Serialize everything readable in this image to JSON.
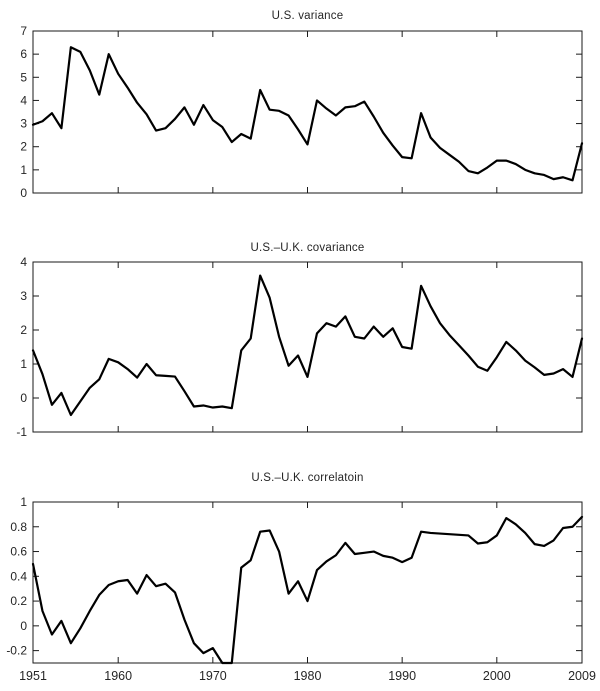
{
  "figure": {
    "background": "#ffffff",
    "line_color": "#000000",
    "axis_color": "#1a1a1a",
    "text_color": "#262626"
  },
  "x_axis": {
    "start_year": 1951,
    "end_year": 2009,
    "tick_years": [
      1951,
      1960,
      1970,
      1980,
      1990,
      2000,
      2009
    ],
    "tick_labels": [
      "1951",
      "1960",
      "1970",
      "1980",
      "1990",
      "2000",
      "2009"
    ]
  },
  "chart_data": [
    {
      "type": "line",
      "title": "U.S. variance",
      "x_start": 1951,
      "x_end": 2009,
      "x_step": 1,
      "ylim": [
        0,
        7
      ],
      "yticks": [
        0,
        1,
        2,
        3,
        4,
        5,
        6,
        7
      ],
      "grid": false,
      "legend": "none",
      "values": [
        2.95,
        3.1,
        3.45,
        2.8,
        6.3,
        6.1,
        5.3,
        4.25,
        6.0,
        5.15,
        4.55,
        3.9,
        3.4,
        2.7,
        2.8,
        3.2,
        3.7,
        2.95,
        3.8,
        3.15,
        2.85,
        2.2,
        2.55,
        2.35,
        4.45,
        3.6,
        3.55,
        3.35,
        2.75,
        2.1,
        4.0,
        3.65,
        3.35,
        3.7,
        3.75,
        3.95,
        3.3,
        2.6,
        2.05,
        1.55,
        1.5,
        3.45,
        2.4,
        1.95,
        1.65,
        1.35,
        0.95,
        0.85,
        1.1,
        1.4,
        1.4,
        1.25,
        1.0,
        0.85,
        0.78,
        0.6,
        0.68,
        0.55,
        2.15
      ]
    },
    {
      "type": "line",
      "title": "U.S.–U.K. covariance",
      "x_start": 1951,
      "x_end": 2009,
      "x_step": 1,
      "ylim": [
        -1,
        4
      ],
      "yticks": [
        -1,
        0,
        1,
        2,
        3,
        4
      ],
      "grid": false,
      "legend": "none",
      "values": [
        1.4,
        0.7,
        -0.2,
        0.15,
        -0.5,
        -0.1,
        0.3,
        0.55,
        1.15,
        1.05,
        0.85,
        0.6,
        1.0,
        0.67,
        0.65,
        0.63,
        0.2,
        -0.25,
        -0.22,
        -0.28,
        -0.25,
        -0.3,
        1.4,
        1.75,
        3.6,
        2.95,
        1.8,
        0.95,
        1.25,
        0.62,
        1.9,
        2.2,
        2.1,
        2.4,
        1.8,
        1.75,
        2.1,
        1.8,
        2.05,
        1.5,
        1.45,
        3.3,
        2.7,
        2.2,
        1.85,
        1.55,
        1.25,
        0.92,
        0.8,
        1.2,
        1.65,
        1.4,
        1.1,
        0.9,
        0.68,
        0.72,
        0.85,
        0.62,
        1.75
      ]
    },
    {
      "type": "line",
      "title": "U.S.–U.K. correlatoin",
      "x_start": 1951,
      "x_end": 2009,
      "x_step": 1,
      "ylim": [
        -0.3,
        1
      ],
      "yticks": [
        -0.2,
        0,
        0.2,
        0.4,
        0.6,
        0.8,
        1
      ],
      "grid": false,
      "legend": "none",
      "values": [
        0.5,
        0.12,
        -0.07,
        0.04,
        -0.14,
        -0.02,
        0.12,
        0.25,
        0.33,
        0.36,
        0.37,
        0.26,
        0.41,
        0.32,
        0.34,
        0.27,
        0.05,
        -0.14,
        -0.22,
        -0.18,
        -0.3,
        -0.3,
        0.47,
        0.53,
        0.76,
        0.77,
        0.6,
        0.26,
        0.36,
        0.2,
        0.45,
        0.52,
        0.57,
        0.67,
        0.58,
        0.59,
        0.6,
        0.565,
        0.55,
        0.515,
        0.55,
        0.76,
        0.75,
        0.745,
        0.74,
        0.735,
        0.73,
        0.665,
        0.675,
        0.73,
        0.87,
        0.82,
        0.75,
        0.66,
        0.645,
        0.69,
        0.79,
        0.8,
        0.88
      ]
    }
  ]
}
